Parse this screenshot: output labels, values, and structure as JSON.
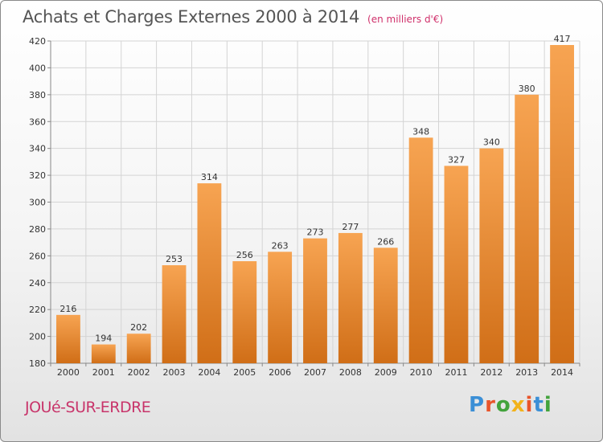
{
  "header": {
    "title": "Achats et Charges Externes 2000 à 2014",
    "subtitle": "(en milliers d'€)"
  },
  "footer": {
    "city": "JOUé-SUR-ERDRE",
    "brand_letters": [
      "P",
      "r",
      "o",
      "x",
      "i",
      "t",
      "i"
    ],
    "brand_colors": [
      "#3b8fd6",
      "#e9552b",
      "#43a33c",
      "#f2b21b",
      "#e9552b",
      "#3b8fd6",
      "#43a33c"
    ]
  },
  "chart_data": {
    "type": "bar",
    "title": "Achats et Charges Externes 2000 à 2014",
    "subtitle": "(en milliers d'€)",
    "xlabel": "",
    "ylabel": "",
    "categories": [
      "2000",
      "2001",
      "2002",
      "2003",
      "2004",
      "2005",
      "2006",
      "2007",
      "2008",
      "2009",
      "2010",
      "2011",
      "2012",
      "2013",
      "2014"
    ],
    "values": [
      216,
      194,
      202,
      253,
      314,
      256,
      263,
      273,
      277,
      266,
      348,
      327,
      340,
      380,
      417
    ],
    "ylim": [
      180,
      420
    ],
    "yticks": [
      180,
      200,
      220,
      240,
      260,
      280,
      300,
      320,
      340,
      360,
      380,
      400,
      420
    ],
    "grid": true,
    "bar_color_top": "#f7a452",
    "bar_color_bottom": "#d06e17",
    "legend": "none"
  }
}
